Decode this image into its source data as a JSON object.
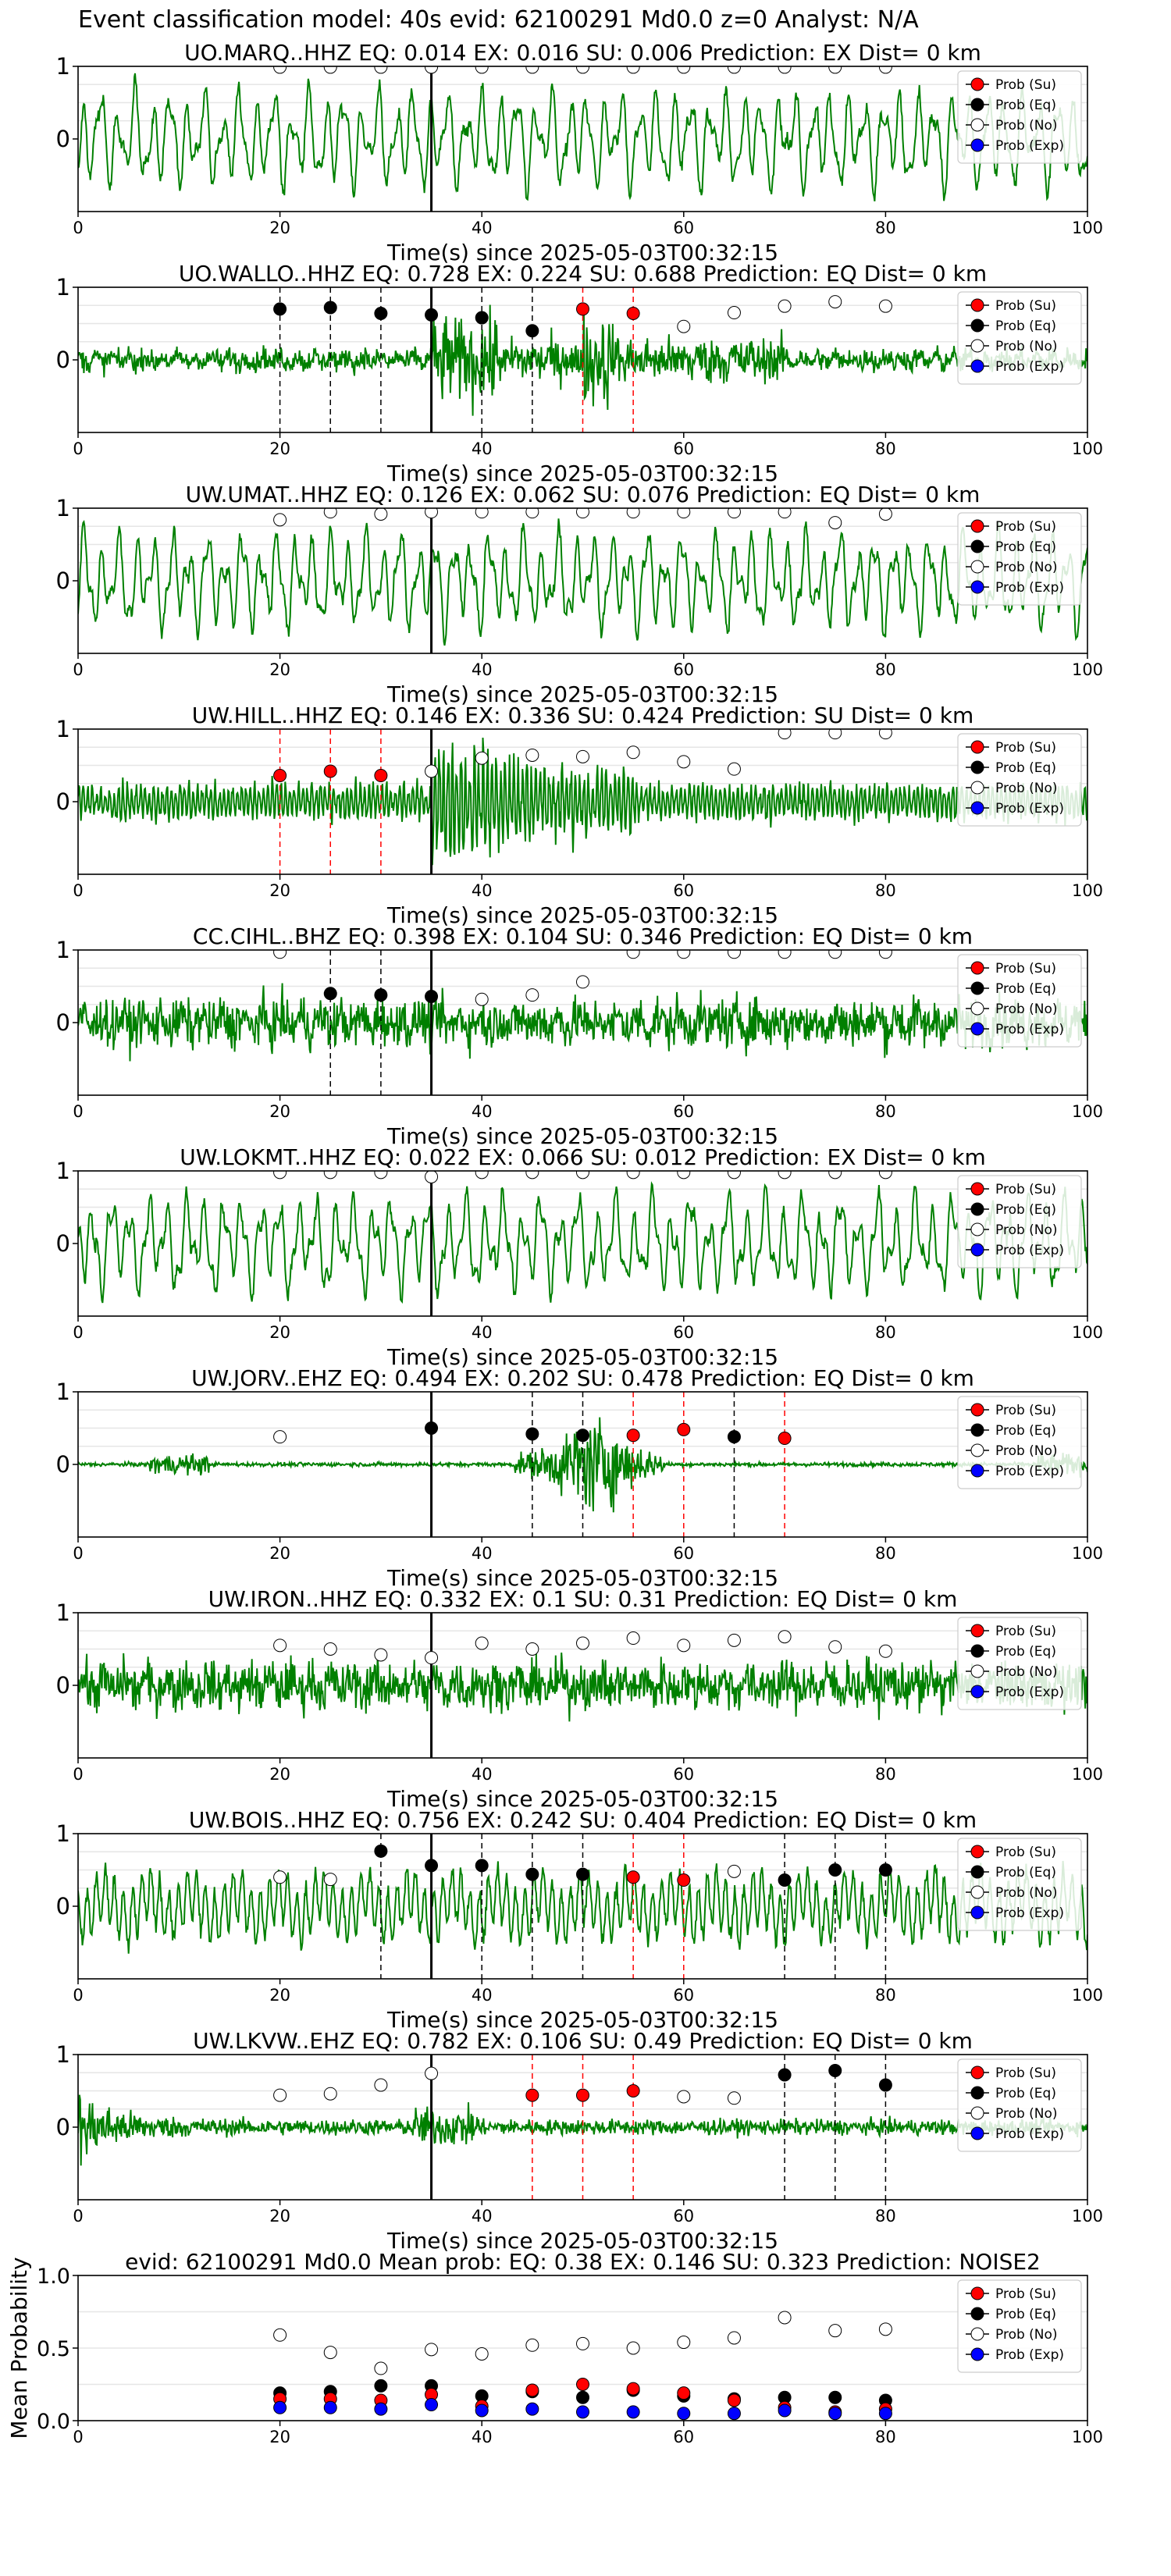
{
  "figure": {
    "suptitle": "Event classification model: 40s evid: 62100291 Md0.0 z=0 Analyst: N/A"
  },
  "colors": {
    "waveform": "#008000",
    "su": "#ff0000",
    "eq": "#000000",
    "no": "#ffffff",
    "exp": "#0000ff",
    "pick_line": "#000000"
  },
  "chart_data": [
    {
      "type": "line",
      "title": "UO.MARQ..HHZ   EQ: 0.014   EX: 0.016   SU: 0.006   Prediction: EX    Dist= 0 km",
      "xlabel": "Time(s) since 2025-05-03T00:32:15",
      "xlim": [
        0,
        100
      ],
      "ylim": [
        -1,
        1
      ],
      "xticks": [
        "0",
        "20",
        "40",
        "60",
        "80",
        "100"
      ],
      "yticks": [
        "1",
        "0"
      ],
      "legend": [
        "Prob (Su)",
        "Prob (Eq)",
        "Prob (No)",
        "Prob (Exp)"
      ],
      "legend_position": "top-right",
      "pick_time": 35,
      "waveform_style": "low-frequency",
      "points": [
        {
          "x": 20,
          "y": 0.99,
          "cls": "no"
        },
        {
          "x": 25,
          "y": 0.99,
          "cls": "no"
        },
        {
          "x": 30,
          "y": 0.99,
          "cls": "no"
        },
        {
          "x": 35,
          "y": 0.99,
          "cls": "no"
        },
        {
          "x": 40,
          "y": 0.99,
          "cls": "no"
        },
        {
          "x": 45,
          "y": 0.99,
          "cls": "no"
        },
        {
          "x": 50,
          "y": 0.99,
          "cls": "no"
        },
        {
          "x": 55,
          "y": 0.99,
          "cls": "no"
        },
        {
          "x": 60,
          "y": 0.99,
          "cls": "no"
        },
        {
          "x": 65,
          "y": 0.99,
          "cls": "no"
        },
        {
          "x": 70,
          "y": 0.99,
          "cls": "no"
        },
        {
          "x": 75,
          "y": 0.99,
          "cls": "no"
        },
        {
          "x": 80,
          "y": 0.99,
          "cls": "no"
        }
      ]
    },
    {
      "type": "line",
      "title": "UO.WALLO..HHZ   EQ: 0.728   EX: 0.224   SU: 0.688   Prediction: EQ    Dist= 0 km",
      "xlabel": "Time(s) since 2025-05-03T00:32:15",
      "xlim": [
        0,
        100
      ],
      "ylim": [
        -1,
        1
      ],
      "xticks": [
        "0",
        "20",
        "40",
        "60",
        "80",
        "100"
      ],
      "yticks": [
        "1",
        "0"
      ],
      "legend": [
        "Prob (Su)",
        "Prob (Eq)",
        "Prob (No)",
        "Prob (Exp)"
      ],
      "legend_position": "top-right",
      "pick_time": 35,
      "waveform_style": "noisy-event",
      "points": [
        {
          "x": 20,
          "y": 0.7,
          "cls": "eq"
        },
        {
          "x": 25,
          "y": 0.72,
          "cls": "eq"
        },
        {
          "x": 30,
          "y": 0.64,
          "cls": "eq"
        },
        {
          "x": 35,
          "y": 0.62,
          "cls": "eq"
        },
        {
          "x": 40,
          "y": 0.58,
          "cls": "eq"
        },
        {
          "x": 45,
          "y": 0.4,
          "cls": "eq"
        },
        {
          "x": 50,
          "y": 0.7,
          "cls": "su"
        },
        {
          "x": 55,
          "y": 0.64,
          "cls": "su"
        },
        {
          "x": 60,
          "y": 0.46,
          "cls": "no"
        },
        {
          "x": 65,
          "y": 0.65,
          "cls": "no"
        },
        {
          "x": 70,
          "y": 0.74,
          "cls": "no"
        },
        {
          "x": 75,
          "y": 0.8,
          "cls": "no"
        },
        {
          "x": 80,
          "y": 0.74,
          "cls": "no"
        }
      ]
    },
    {
      "type": "line",
      "title": "UW.UMAT..HHZ   EQ: 0.126   EX: 0.062   SU: 0.076   Prediction: EQ    Dist= 0 km",
      "xlabel": "Time(s) since 2025-05-03T00:32:15",
      "xlim": [
        0,
        100
      ],
      "ylim": [
        -1,
        1
      ],
      "xticks": [
        "0",
        "20",
        "40",
        "60",
        "80",
        "100"
      ],
      "yticks": [
        "1",
        "0"
      ],
      "legend": [
        "Prob (Su)",
        "Prob (Eq)",
        "Prob (No)",
        "Prob (Exp)"
      ],
      "legend_position": "top-right",
      "pick_time": 35,
      "waveform_style": "low-frequency",
      "points": [
        {
          "x": 20,
          "y": 0.84,
          "cls": "no"
        },
        {
          "x": 25,
          "y": 0.95,
          "cls": "no"
        },
        {
          "x": 30,
          "y": 0.92,
          "cls": "no"
        },
        {
          "x": 35,
          "y": 0.95,
          "cls": "no"
        },
        {
          "x": 40,
          "y": 0.95,
          "cls": "no"
        },
        {
          "x": 45,
          "y": 0.95,
          "cls": "no"
        },
        {
          "x": 50,
          "y": 0.95,
          "cls": "no"
        },
        {
          "x": 55,
          "y": 0.95,
          "cls": "no"
        },
        {
          "x": 60,
          "y": 0.95,
          "cls": "no"
        },
        {
          "x": 65,
          "y": 0.95,
          "cls": "no"
        },
        {
          "x": 70,
          "y": 0.95,
          "cls": "no"
        },
        {
          "x": 75,
          "y": 0.8,
          "cls": "no"
        },
        {
          "x": 80,
          "y": 0.92,
          "cls": "no"
        }
      ]
    },
    {
      "type": "line",
      "title": "UW.HILL..HHZ   EQ: 0.146   EX: 0.336   SU: 0.424   Prediction: SU    Dist= 0 km",
      "xlabel": "Time(s) since 2025-05-03T00:32:15",
      "xlim": [
        0,
        100
      ],
      "ylim": [
        -1,
        1
      ],
      "xticks": [
        "0",
        "20",
        "40",
        "60",
        "80",
        "100"
      ],
      "yticks": [
        "1",
        "0"
      ],
      "legend": [
        "Prob (Su)",
        "Prob (Eq)",
        "Prob (No)",
        "Prob (Exp)"
      ],
      "legend_position": "top-right",
      "pick_time": 35,
      "waveform_style": "burst",
      "points": [
        {
          "x": 20,
          "y": 0.36,
          "cls": "su"
        },
        {
          "x": 25,
          "y": 0.42,
          "cls": "su"
        },
        {
          "x": 30,
          "y": 0.36,
          "cls": "su"
        },
        {
          "x": 35,
          "y": 0.42,
          "cls": "no"
        },
        {
          "x": 40,
          "y": 0.6,
          "cls": "no"
        },
        {
          "x": 45,
          "y": 0.64,
          "cls": "no"
        },
        {
          "x": 50,
          "y": 0.62,
          "cls": "no"
        },
        {
          "x": 55,
          "y": 0.68,
          "cls": "no"
        },
        {
          "x": 60,
          "y": 0.55,
          "cls": "no"
        },
        {
          "x": 65,
          "y": 0.45,
          "cls": "no"
        },
        {
          "x": 70,
          "y": 0.95,
          "cls": "no"
        },
        {
          "x": 75,
          "y": 0.95,
          "cls": "no"
        },
        {
          "x": 80,
          "y": 0.95,
          "cls": "no"
        }
      ]
    },
    {
      "type": "line",
      "title": "CC.CIHL..BHZ   EQ: 0.398   EX: 0.104   SU: 0.346   Prediction: EQ    Dist= 0 km",
      "xlabel": "Time(s) since 2025-05-03T00:32:15",
      "xlim": [
        0,
        100
      ],
      "ylim": [
        -1,
        1
      ],
      "xticks": [
        "0",
        "20",
        "40",
        "60",
        "80",
        "100"
      ],
      "yticks": [
        "1",
        "0"
      ],
      "legend": [
        "Prob (Su)",
        "Prob (Eq)",
        "Prob (No)",
        "Prob (Exp)"
      ],
      "legend_position": "top-right",
      "pick_time": 35,
      "waveform_style": "noisy",
      "points": [
        {
          "x": 20,
          "y": 0.97,
          "cls": "no"
        },
        {
          "x": 25,
          "y": 0.4,
          "cls": "eq"
        },
        {
          "x": 30,
          "y": 0.38,
          "cls": "eq"
        },
        {
          "x": 35,
          "y": 0.36,
          "cls": "eq"
        },
        {
          "x": 40,
          "y": 0.32,
          "cls": "no"
        },
        {
          "x": 45,
          "y": 0.38,
          "cls": "no"
        },
        {
          "x": 50,
          "y": 0.56,
          "cls": "no"
        },
        {
          "x": 55,
          "y": 0.97,
          "cls": "no"
        },
        {
          "x": 60,
          "y": 0.97,
          "cls": "no"
        },
        {
          "x": 65,
          "y": 0.97,
          "cls": "no"
        },
        {
          "x": 70,
          "y": 0.97,
          "cls": "no"
        },
        {
          "x": 75,
          "y": 0.97,
          "cls": "no"
        },
        {
          "x": 80,
          "y": 0.97,
          "cls": "no"
        }
      ]
    },
    {
      "type": "line",
      "title": "UW.LOKMT..HHZ   EQ: 0.022   EX: 0.066   SU: 0.012   Prediction: EX    Dist= 0 km",
      "xlabel": "Time(s) since 2025-05-03T00:32:15",
      "xlim": [
        0,
        100
      ],
      "ylim": [
        -1,
        1
      ],
      "xticks": [
        "0",
        "20",
        "40",
        "60",
        "80",
        "100"
      ],
      "yticks": [
        "1",
        "0"
      ],
      "legend": [
        "Prob (Su)",
        "Prob (Eq)",
        "Prob (No)",
        "Prob (Exp)"
      ],
      "legend_position": "top-right",
      "pick_time": 35,
      "waveform_style": "low-frequency",
      "points": [
        {
          "x": 20,
          "y": 0.98,
          "cls": "no"
        },
        {
          "x": 25,
          "y": 0.98,
          "cls": "no"
        },
        {
          "x": 30,
          "y": 0.98,
          "cls": "no"
        },
        {
          "x": 35,
          "y": 0.92,
          "cls": "no"
        },
        {
          "x": 40,
          "y": 0.98,
          "cls": "no"
        },
        {
          "x": 45,
          "y": 0.98,
          "cls": "no"
        },
        {
          "x": 50,
          "y": 0.98,
          "cls": "no"
        },
        {
          "x": 55,
          "y": 0.98,
          "cls": "no"
        },
        {
          "x": 60,
          "y": 0.98,
          "cls": "no"
        },
        {
          "x": 65,
          "y": 0.98,
          "cls": "no"
        },
        {
          "x": 70,
          "y": 0.98,
          "cls": "no"
        },
        {
          "x": 75,
          "y": 0.98,
          "cls": "no"
        },
        {
          "x": 80,
          "y": 0.98,
          "cls": "no"
        }
      ]
    },
    {
      "type": "line",
      "title": "UW.JORV..EHZ   EQ: 0.494   EX: 0.202   SU: 0.478   Prediction: EQ    Dist= 0 km",
      "xlabel": "Time(s) since 2025-05-03T00:32:15",
      "xlim": [
        0,
        100
      ],
      "ylim": [
        -1,
        1
      ],
      "xticks": [
        "0",
        "20",
        "40",
        "60",
        "80",
        "100"
      ],
      "yticks": [
        "1",
        "0"
      ],
      "legend": [
        "Prob (Su)",
        "Prob (Eq)",
        "Prob (No)",
        "Prob (Exp)"
      ],
      "legend_position": "top-right",
      "pick_time": 35,
      "waveform_style": "quiet-event",
      "points": [
        {
          "x": 20,
          "y": 0.38,
          "cls": "no"
        },
        {
          "x": 35,
          "y": 0.5,
          "cls": "eq"
        },
        {
          "x": 45,
          "y": 0.42,
          "cls": "eq"
        },
        {
          "x": 50,
          "y": 0.4,
          "cls": "eq"
        },
        {
          "x": 55,
          "y": 0.4,
          "cls": "su"
        },
        {
          "x": 60,
          "y": 0.48,
          "cls": "su"
        },
        {
          "x": 65,
          "y": 0.38,
          "cls": "eq"
        },
        {
          "x": 70,
          "y": 0.36,
          "cls": "su"
        }
      ]
    },
    {
      "type": "line",
      "title": "UW.IRON..HHZ   EQ: 0.332   EX: 0.1   SU: 0.31   Prediction: EQ    Dist= 0 km",
      "xlabel": "Time(s) since 2025-05-03T00:32:15",
      "xlim": [
        0,
        100
      ],
      "ylim": [
        -1,
        1
      ],
      "xticks": [
        "0",
        "20",
        "40",
        "60",
        "80",
        "100"
      ],
      "yticks": [
        "1",
        "0"
      ],
      "legend": [
        "Prob (Su)",
        "Prob (Eq)",
        "Prob (No)",
        "Prob (Exp)"
      ],
      "legend_position": "top-right",
      "pick_time": 35,
      "waveform_style": "noisy",
      "points": [
        {
          "x": 20,
          "y": 0.55,
          "cls": "no"
        },
        {
          "x": 25,
          "y": 0.5,
          "cls": "no"
        },
        {
          "x": 30,
          "y": 0.42,
          "cls": "no"
        },
        {
          "x": 35,
          "y": 0.38,
          "cls": "no"
        },
        {
          "x": 40,
          "y": 0.58,
          "cls": "no"
        },
        {
          "x": 45,
          "y": 0.5,
          "cls": "no"
        },
        {
          "x": 50,
          "y": 0.58,
          "cls": "no"
        },
        {
          "x": 55,
          "y": 0.65,
          "cls": "no"
        },
        {
          "x": 60,
          "y": 0.55,
          "cls": "no"
        },
        {
          "x": 65,
          "y": 0.62,
          "cls": "no"
        },
        {
          "x": 70,
          "y": 0.67,
          "cls": "no"
        },
        {
          "x": 75,
          "y": 0.53,
          "cls": "no"
        },
        {
          "x": 80,
          "y": 0.47,
          "cls": "no"
        }
      ]
    },
    {
      "type": "line",
      "title": "UW.BOIS..HHZ   EQ: 0.756   EX: 0.242   SU: 0.404   Prediction: EQ    Dist= 0 km",
      "xlabel": "Time(s) since 2025-05-03T00:32:15",
      "xlim": [
        0,
        100
      ],
      "ylim": [
        -1,
        1
      ],
      "xticks": [
        "0",
        "20",
        "40",
        "60",
        "80",
        "100"
      ],
      "yticks": [
        "1",
        "0"
      ],
      "legend": [
        "Prob (Su)",
        "Prob (Eq)",
        "Prob (No)",
        "Prob (Exp)"
      ],
      "legend_position": "top-right",
      "pick_time": 35,
      "waveform_style": "mixed",
      "points": [
        {
          "x": 20,
          "y": 0.4,
          "cls": "no"
        },
        {
          "x": 25,
          "y": 0.37,
          "cls": "no"
        },
        {
          "x": 30,
          "y": 0.76,
          "cls": "eq"
        },
        {
          "x": 35,
          "y": 0.56,
          "cls": "eq"
        },
        {
          "x": 40,
          "y": 0.56,
          "cls": "eq"
        },
        {
          "x": 45,
          "y": 0.44,
          "cls": "eq"
        },
        {
          "x": 50,
          "y": 0.44,
          "cls": "eq"
        },
        {
          "x": 55,
          "y": 0.4,
          "cls": "su"
        },
        {
          "x": 60,
          "y": 0.36,
          "cls": "su"
        },
        {
          "x": 65,
          "y": 0.48,
          "cls": "no"
        },
        {
          "x": 70,
          "y": 0.36,
          "cls": "eq"
        },
        {
          "x": 75,
          "y": 0.5,
          "cls": "eq"
        },
        {
          "x": 80,
          "y": 0.5,
          "cls": "eq"
        }
      ]
    },
    {
      "type": "line",
      "title": "UW.LKVW..EHZ   EQ: 0.782   EX: 0.106   SU: 0.49   Prediction: EQ    Dist= 0 km",
      "xlabel": "Time(s) since 2025-05-03T00:32:15",
      "xlim": [
        0,
        100
      ],
      "ylim": [
        -1,
        1
      ],
      "xticks": [
        "0",
        "20",
        "40",
        "60",
        "80",
        "100"
      ],
      "yticks": [
        "1",
        "0"
      ],
      "legend": [
        "Prob (Su)",
        "Prob (Eq)",
        "Prob (No)",
        "Prob (Exp)"
      ],
      "legend_position": "top-right",
      "pick_time": 35,
      "waveform_style": "decaying",
      "points": [
        {
          "x": 20,
          "y": 0.44,
          "cls": "no"
        },
        {
          "x": 25,
          "y": 0.46,
          "cls": "no"
        },
        {
          "x": 30,
          "y": 0.58,
          "cls": "no"
        },
        {
          "x": 35,
          "y": 0.74,
          "cls": "no"
        },
        {
          "x": 45,
          "y": 0.44,
          "cls": "su"
        },
        {
          "x": 50,
          "y": 0.44,
          "cls": "su"
        },
        {
          "x": 55,
          "y": 0.5,
          "cls": "su"
        },
        {
          "x": 60,
          "y": 0.42,
          "cls": "no"
        },
        {
          "x": 65,
          "y": 0.4,
          "cls": "no"
        },
        {
          "x": 70,
          "y": 0.72,
          "cls": "eq"
        },
        {
          "x": 75,
          "y": 0.78,
          "cls": "eq"
        },
        {
          "x": 80,
          "y": 0.58,
          "cls": "eq"
        }
      ]
    },
    {
      "type": "scatter",
      "title": "evid: 62100291  Md0.0   Mean prob:   EQ: 0.38  EX: 0.146  SU: 0.323   Prediction: NOISE2",
      "xlabel": "",
      "ylabel": "Mean Probability",
      "xlim": [
        0,
        100
      ],
      "ylim": [
        0,
        1
      ],
      "xticks": [
        "0",
        "20",
        "40",
        "60",
        "80",
        "100"
      ],
      "yticks": [
        "1.0",
        "0.5",
        "0.0"
      ],
      "legend": [
        "Prob (Su)",
        "Prob (Eq)",
        "Prob (No)",
        "Prob (Exp)"
      ],
      "legend_position": "top-right",
      "x": [
        20,
        25,
        30,
        35,
        40,
        45,
        50,
        55,
        60,
        65,
        70,
        75,
        80
      ],
      "series": [
        {
          "name": "Prob (No)",
          "cls": "no",
          "values": [
            0.59,
            0.47,
            0.36,
            0.49,
            0.46,
            0.52,
            0.53,
            0.5,
            0.54,
            0.57,
            0.71,
            0.62,
            0.63
          ]
        },
        {
          "name": "Prob (Eq)",
          "cls": "eq",
          "values": [
            0.19,
            0.2,
            0.24,
            0.24,
            0.17,
            0.2,
            0.16,
            0.21,
            0.17,
            0.15,
            0.16,
            0.16,
            0.14
          ]
        },
        {
          "name": "Prob (Su)",
          "cls": "su",
          "values": [
            0.15,
            0.15,
            0.14,
            0.18,
            0.1,
            0.21,
            0.25,
            0.22,
            0.19,
            0.14,
            0.09,
            0.06,
            0.08
          ]
        },
        {
          "name": "Prob (Exp)",
          "cls": "exp",
          "values": [
            0.09,
            0.09,
            0.08,
            0.11,
            0.07,
            0.08,
            0.06,
            0.06,
            0.05,
            0.05,
            0.07,
            0.05,
            0.05
          ]
        }
      ]
    }
  ]
}
